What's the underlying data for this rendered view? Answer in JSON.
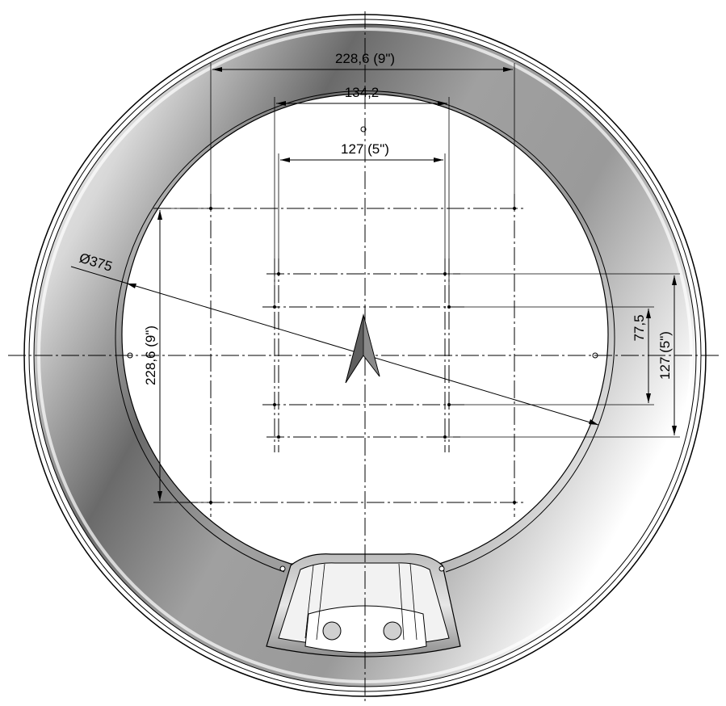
{
  "colors": {
    "line": "#000000",
    "ring_dark": "#5f5f5f",
    "ring_light": "#ffffff",
    "background": "#ffffff"
  },
  "dimensions": {
    "top_outer": "228,6 (9\")",
    "top_middle": "134,2",
    "top_inner": "127 (5\")",
    "left_vertical": "228,6 (9\")",
    "right_inner": "77,5",
    "right_outer": "127 (5\")",
    "diameter": "Ø375"
  },
  "icons": {
    "center_mark": "arrowhead-icon"
  }
}
